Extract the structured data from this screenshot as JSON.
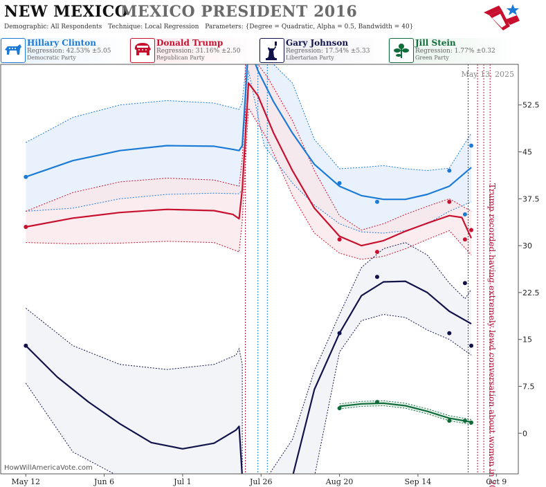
{
  "header": {
    "state": "NEW MEXICO",
    "race": "MEXICO PRESIDENT 2016",
    "demographic": "Demographic: All Respondents",
    "technique": "Technique: Local Regression",
    "parameters": "Parameters: {Degree = Quadratic, Alpha = 0.5, Bandwidth = 40}"
  },
  "candidates": [
    {
      "name": "Hillary Clinton",
      "regression": "Regression: 42.53% ±5.05",
      "party": "Democratic Party",
      "color": "#1b7ad6",
      "bg": "#e4f0fb",
      "icon": "donkey-icon"
    },
    {
      "name": "Donald Trump",
      "regression": "Regression: 31.16% ±2.50",
      "party": "Republican Party",
      "color": "#c8102e",
      "bg": "#fbe6ea",
      "icon": "elephant-icon"
    },
    {
      "name": "Gary Johnson",
      "regression": "Regression: 17.54% ±5.33",
      "party": "Libertarian Party",
      "color": "#12124a",
      "bg": "#ebebf1",
      "icon": "statue-of-liberty-icon"
    },
    {
      "name": "Jill Stein",
      "regression": "Regression: 1.77% ±0.32",
      "party": "Green Party",
      "color": "#0f6b3a",
      "bg": "#e5f2ea",
      "icon": "green-flower-icon"
    }
  ],
  "watermark": "HowWillAmericaVote.com",
  "date_stamp": "May 13, 2025",
  "annotation": "Trump recorded having extremely lewd conversation about women in 2005",
  "chart_data": {
    "type": "line",
    "x_axis": {
      "type": "date",
      "range": [
        "2016-05-04",
        "2016-10-16"
      ],
      "ticks": [
        "May 12",
        "Jun 6",
        "Jul 1",
        "Jul 26",
        "Aug 20",
        "Sep 14",
        "Oct 9"
      ],
      "tick_dates": [
        "2016-05-12",
        "2016-06-06",
        "2016-07-01",
        "2016-07-26",
        "2016-08-20",
        "2016-09-14",
        "2016-10-09"
      ]
    },
    "y_axis": {
      "range": [
        -6.5,
        59
      ],
      "ticks": [
        "0",
        "7.5",
        "15",
        "22.5",
        "30",
        "37.5",
        "45",
        "52.5"
      ],
      "tick_values": [
        0,
        7.5,
        15,
        22.5,
        30,
        37.5,
        45,
        52.5
      ],
      "position": "right"
    },
    "grid": false,
    "event_lines": [
      {
        "date": "2016-07-21",
        "color": "#c8102e"
      },
      {
        "date": "2016-07-25",
        "color": "#1b7ad6"
      },
      {
        "date": "2016-07-28",
        "color": "#1b7ad6"
      },
      {
        "date": "2016-09-30",
        "color": "#444444"
      },
      {
        "date": "2016-10-03",
        "color": "#c8102e"
      },
      {
        "date": "2016-10-05",
        "color": "#c8102e"
      },
      {
        "date": "2016-10-07",
        "color": "#c8102e"
      }
    ],
    "series": [
      {
        "name": "Hillary Clinton",
        "color": "#1b7ad6",
        "fill": "#e2eefb",
        "points": [
          [
            "2016-05-12",
            41
          ],
          [
            "2016-08-20",
            40
          ],
          [
            "2016-09-01",
            37
          ],
          [
            "2016-09-24",
            42
          ],
          [
            "2016-09-29",
            35
          ],
          [
            "2016-10-01",
            46
          ]
        ],
        "trend": [
          [
            "2016-05-12",
            41
          ],
          [
            "2016-05-27",
            43.6
          ],
          [
            "2016-06-11",
            45.2
          ],
          [
            "2016-06-26",
            46
          ],
          [
            "2016-07-11",
            45.9
          ],
          [
            "2016-07-17",
            45.4
          ],
          [
            "2016-07-19",
            45.2
          ],
          [
            "2016-07-20",
            46
          ],
          [
            "2016-07-22",
            62
          ],
          [
            "2016-07-25",
            58
          ],
          [
            "2016-07-30",
            53
          ],
          [
            "2016-08-05",
            48
          ],
          [
            "2016-08-12",
            43
          ],
          [
            "2016-08-20",
            39.5
          ],
          [
            "2016-08-27",
            38
          ],
          [
            "2016-09-03",
            37.4
          ],
          [
            "2016-09-10",
            37.4
          ],
          [
            "2016-09-17",
            38.2
          ],
          [
            "2016-09-24",
            39.5
          ],
          [
            "2016-10-01",
            42.5
          ]
        ],
        "upper": [
          [
            "2016-05-12",
            46.5
          ],
          [
            "2016-05-27",
            50.5
          ],
          [
            "2016-06-11",
            52.5
          ],
          [
            "2016-06-26",
            53.2
          ],
          [
            "2016-07-11",
            52.8
          ],
          [
            "2016-07-19",
            51.8
          ],
          [
            "2016-07-20",
            53
          ],
          [
            "2016-07-22",
            63
          ],
          [
            "2016-07-28",
            60
          ],
          [
            "2016-08-05",
            56
          ],
          [
            "2016-08-12",
            47
          ],
          [
            "2016-08-20",
            42.3
          ],
          [
            "2016-08-27",
            42.5
          ],
          [
            "2016-09-03",
            42.8
          ],
          [
            "2016-09-10",
            42.3
          ],
          [
            "2016-09-17",
            42
          ],
          [
            "2016-09-24",
            42.4
          ],
          [
            "2016-10-01",
            48
          ]
        ],
        "lower": [
          [
            "2016-05-12",
            35.5
          ],
          [
            "2016-05-27",
            36
          ],
          [
            "2016-06-11",
            37.5
          ],
          [
            "2016-06-26",
            38.2
          ],
          [
            "2016-07-11",
            38.4
          ],
          [
            "2016-07-19",
            38.3
          ],
          [
            "2016-07-20",
            39
          ],
          [
            "2016-07-22",
            58
          ],
          [
            "2016-07-27",
            46
          ],
          [
            "2016-08-05",
            40
          ],
          [
            "2016-08-12",
            36.5
          ],
          [
            "2016-08-20",
            33.5
          ],
          [
            "2016-08-27",
            32.2
          ],
          [
            "2016-09-03",
            32
          ],
          [
            "2016-09-10",
            32.4
          ],
          [
            "2016-09-17",
            33.5
          ],
          [
            "2016-09-24",
            35.5
          ],
          [
            "2016-10-01",
            37
          ]
        ]
      },
      {
        "name": "Donald Trump",
        "color": "#c8102e",
        "fill": "#fae6ea",
        "points": [
          [
            "2016-05-12",
            33
          ],
          [
            "2016-08-20",
            31
          ],
          [
            "2016-09-01",
            29
          ],
          [
            "2016-09-24",
            37
          ],
          [
            "2016-09-29",
            31
          ],
          [
            "2016-10-01",
            32.5
          ]
        ],
        "trend": [
          [
            "2016-05-12",
            33
          ],
          [
            "2016-05-27",
            34.4
          ],
          [
            "2016-06-11",
            35.3
          ],
          [
            "2016-06-26",
            35.8
          ],
          [
            "2016-07-11",
            35.6
          ],
          [
            "2016-07-17",
            35
          ],
          [
            "2016-07-19",
            34.3
          ],
          [
            "2016-07-20",
            39
          ],
          [
            "2016-07-22",
            56
          ],
          [
            "2016-07-25",
            54
          ],
          [
            "2016-07-30",
            48
          ],
          [
            "2016-08-05",
            42
          ],
          [
            "2016-08-12",
            36
          ],
          [
            "2016-08-20",
            31.5
          ],
          [
            "2016-08-27",
            30
          ],
          [
            "2016-09-03",
            30.8
          ],
          [
            "2016-09-10",
            32.3
          ],
          [
            "2016-09-17",
            33.6
          ],
          [
            "2016-09-24",
            34.8
          ],
          [
            "2016-09-28",
            34.5
          ],
          [
            "2016-10-01",
            31.2
          ]
        ],
        "upper": [
          [
            "2016-05-12",
            35.5
          ],
          [
            "2016-05-27",
            38.5
          ],
          [
            "2016-06-11",
            40.2
          ],
          [
            "2016-06-26",
            40.8
          ],
          [
            "2016-07-11",
            40.5
          ],
          [
            "2016-07-19",
            39.5
          ],
          [
            "2016-07-20",
            44
          ],
          [
            "2016-07-22",
            61
          ],
          [
            "2016-07-28",
            57
          ],
          [
            "2016-08-05",
            50
          ],
          [
            "2016-08-12",
            42
          ],
          [
            "2016-08-20",
            34.8
          ],
          [
            "2016-08-27",
            32.5
          ],
          [
            "2016-09-03",
            33.5
          ],
          [
            "2016-09-10",
            35
          ],
          [
            "2016-09-17",
            36.3
          ],
          [
            "2016-09-24",
            37.5
          ],
          [
            "2016-10-01",
            35.5
          ]
        ],
        "lower": [
          [
            "2016-05-12",
            30.5
          ],
          [
            "2016-05-27",
            30.3
          ],
          [
            "2016-06-11",
            30.4
          ],
          [
            "2016-06-26",
            30.7
          ],
          [
            "2016-07-11",
            30.5
          ],
          [
            "2016-07-19",
            29
          ],
          [
            "2016-07-20",
            34
          ],
          [
            "2016-07-22",
            52
          ],
          [
            "2016-07-28",
            47
          ],
          [
            "2016-08-05",
            38
          ],
          [
            "2016-08-12",
            32
          ],
          [
            "2016-08-20",
            28.8
          ],
          [
            "2016-08-27",
            27.8
          ],
          [
            "2016-09-03",
            28.3
          ],
          [
            "2016-09-10",
            29.5
          ],
          [
            "2016-09-17",
            31
          ],
          [
            "2016-09-24",
            32.4
          ],
          [
            "2016-10-01",
            28.5
          ]
        ]
      },
      {
        "name": "Gary Johnson",
        "color": "#12124a",
        "fill": "#eef0f4",
        "points": [
          [
            "2016-05-12",
            14
          ],
          [
            "2016-08-20",
            16
          ],
          [
            "2016-09-01",
            25
          ],
          [
            "2016-09-24",
            16
          ],
          [
            "2016-09-29",
            24
          ],
          [
            "2016-10-01",
            14
          ]
        ],
        "trend": [
          [
            "2016-05-12",
            14
          ],
          [
            "2016-05-22",
            9
          ],
          [
            "2016-06-01",
            5
          ],
          [
            "2016-06-11",
            1.5
          ],
          [
            "2016-06-21",
            -1.5
          ],
          [
            "2016-07-01",
            -2.5
          ],
          [
            "2016-07-11",
            -1.6
          ],
          [
            "2016-07-18",
            0.5
          ],
          [
            "2016-07-19",
            1.1
          ],
          [
            "2016-07-20",
            -7
          ],
          [
            "2016-08-05",
            -7
          ],
          [
            "2016-08-12",
            7
          ],
          [
            "2016-08-20",
            16
          ],
          [
            "2016-08-27",
            22
          ],
          [
            "2016-09-03",
            24.2
          ],
          [
            "2016-09-10",
            24.3
          ],
          [
            "2016-09-17",
            22.5
          ],
          [
            "2016-09-24",
            19.5
          ],
          [
            "2016-10-01",
            17.5
          ]
        ],
        "upper": [
          [
            "2016-05-12",
            20
          ],
          [
            "2016-05-27",
            14
          ],
          [
            "2016-06-11",
            11
          ],
          [
            "2016-06-26",
            10.2
          ],
          [
            "2016-07-11",
            11
          ],
          [
            "2016-07-18",
            12.5
          ],
          [
            "2016-07-19",
            13.5
          ],
          [
            "2016-07-20",
            11
          ],
          [
            "2016-07-20",
            -7
          ],
          [
            "2016-07-28",
            -7
          ],
          [
            "2016-08-05",
            -1
          ],
          [
            "2016-08-12",
            10
          ],
          [
            "2016-08-20",
            19
          ],
          [
            "2016-08-27",
            26.5
          ],
          [
            "2016-09-03",
            29.5
          ],
          [
            "2016-09-10",
            30.5
          ],
          [
            "2016-09-17",
            28.5
          ],
          [
            "2016-09-24",
            24
          ],
          [
            "2016-09-29",
            21.5
          ],
          [
            "2016-10-01",
            23
          ]
        ],
        "lower": [
          [
            "2016-05-12",
            8
          ],
          [
            "2016-05-27",
            -3
          ],
          [
            "2016-06-11",
            -7
          ],
          [
            "2016-08-12",
            -7
          ],
          [
            "2016-08-16",
            3
          ],
          [
            "2016-08-20",
            13
          ],
          [
            "2016-08-27",
            18
          ],
          [
            "2016-09-03",
            19
          ],
          [
            "2016-09-10",
            18.5
          ],
          [
            "2016-09-17",
            16.5
          ],
          [
            "2016-09-24",
            15
          ],
          [
            "2016-10-01",
            12.5
          ]
        ]
      },
      {
        "name": "Jill Stein",
        "color": "#0f6b3a",
        "fill": "#dfefe5",
        "points": [
          [
            "2016-08-20",
            4
          ],
          [
            "2016-09-01",
            5
          ],
          [
            "2016-09-24",
            2
          ],
          [
            "2016-09-29",
            2
          ],
          [
            "2016-10-01",
            1.7
          ]
        ],
        "trend": [
          [
            "2016-08-20",
            4.3
          ],
          [
            "2016-08-27",
            4.7
          ],
          [
            "2016-09-03",
            4.8
          ],
          [
            "2016-09-10",
            4.4
          ],
          [
            "2016-09-17",
            3.5
          ],
          [
            "2016-09-24",
            2.4
          ],
          [
            "2016-10-01",
            1.8
          ]
        ],
        "upper": [
          [
            "2016-08-20",
            4.7
          ],
          [
            "2016-08-27",
            5.1
          ],
          [
            "2016-09-03",
            5.2
          ],
          [
            "2016-09-10",
            4.8
          ],
          [
            "2016-09-17",
            3.9
          ],
          [
            "2016-09-24",
            2.8
          ],
          [
            "2016-10-01",
            2.2
          ]
        ],
        "lower": [
          [
            "2016-08-20",
            3.9
          ],
          [
            "2016-08-27",
            4.3
          ],
          [
            "2016-09-03",
            4.4
          ],
          [
            "2016-09-10",
            4.0
          ],
          [
            "2016-09-17",
            3.1
          ],
          [
            "2016-09-24",
            2.0
          ],
          [
            "2016-10-01",
            1.4
          ]
        ]
      }
    ]
  }
}
